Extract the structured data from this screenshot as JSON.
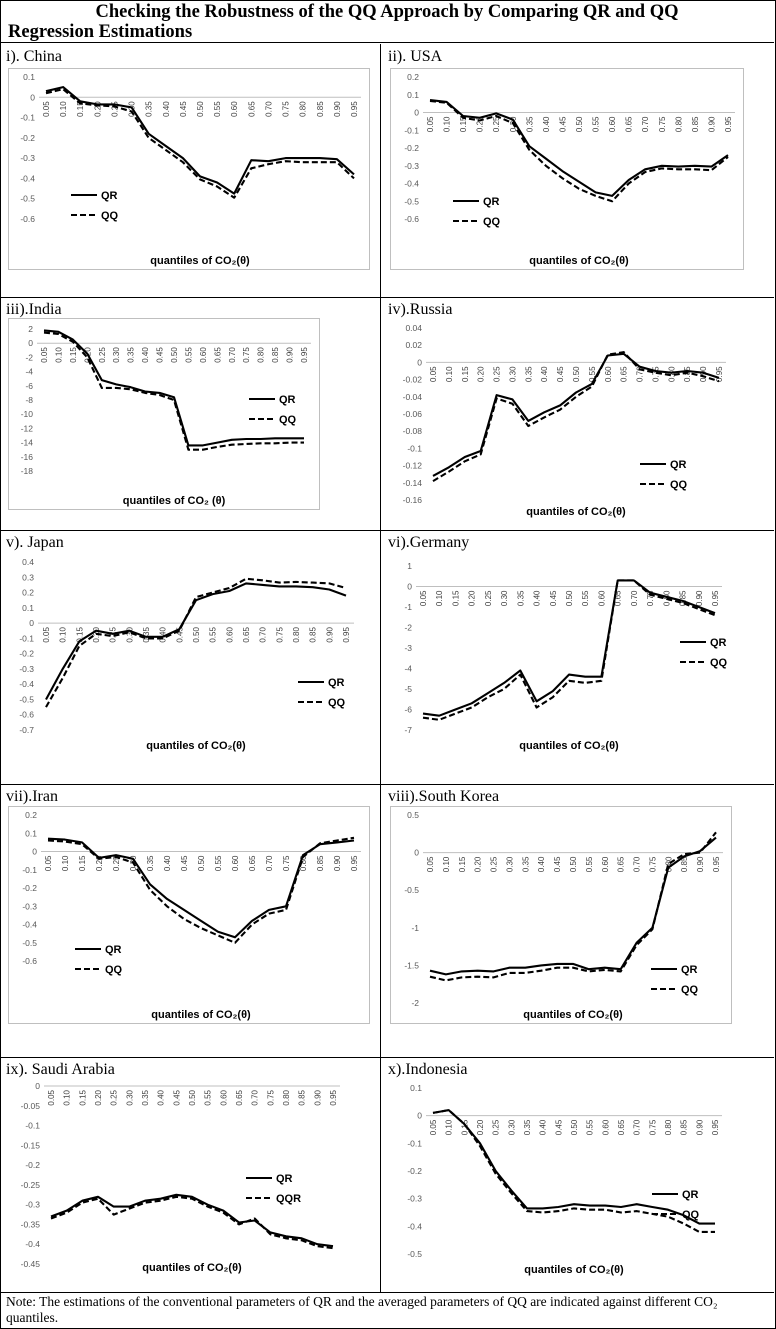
{
  "title": {
    "line1": "Checking the Robustness of the QQ Approach by Comparing QR and QQ",
    "line2": "Regression Estimations"
  },
  "note": "Note: The estimations of the conventional parameters of QR and the averaged parameters of QQ are indicated against different CO₂ quantiles.",
  "chart_data": [
    {
      "type": "line",
      "label": "i). China",
      "xlabel": "quantiles of CO₂(θ)",
      "categories": [
        "0.05",
        "0.10",
        "0.15",
        "0.20",
        "0.25",
        "0.30",
        "0.35",
        "0.40",
        "0.45",
        "0.50",
        "0.55",
        "0.60",
        "0.65",
        "0.70",
        "0.75",
        "0.80",
        "0.85",
        "0.90",
        "0.95"
      ],
      "ylim": [
        -0.6,
        0.1
      ],
      "yticks": [
        "0.1",
        "0",
        "-0.1",
        "-0.2",
        "-0.3",
        "-0.4",
        "-0.5",
        "-0.6"
      ],
      "legend": [
        "QR",
        "QQ"
      ],
      "series": [
        {
          "name": "QR",
          "values": [
            0.03,
            0.05,
            -0.02,
            -0.035,
            -0.035,
            -0.05,
            -0.18,
            -0.24,
            -0.3,
            -0.39,
            -0.42,
            -0.475,
            -0.31,
            -0.315,
            -0.3,
            -0.3,
            -0.3,
            -0.305,
            -0.38
          ]
        },
        {
          "name": "QQ",
          "values": [
            0.02,
            0.04,
            -0.03,
            -0.04,
            -0.045,
            -0.07,
            -0.2,
            -0.26,
            -0.32,
            -0.405,
            -0.44,
            -0.495,
            -0.35,
            -0.33,
            -0.315,
            -0.32,
            -0.32,
            -0.32,
            -0.4
          ]
        }
      ]
    },
    {
      "type": "line",
      "label": "ii). USA",
      "xlabel": "quantiles of CO₂(θ)",
      "categories": [
        "0.05",
        "0.10",
        "0.15",
        "0.20",
        "0.25",
        "0.30",
        "0.35",
        "0.40",
        "0.45",
        "0.50",
        "0.55",
        "0.60",
        "0.65",
        "0.70",
        "0.75",
        "0.80",
        "0.85",
        "0.90",
        "0.95"
      ],
      "ylim": [
        -0.6,
        0.2
      ],
      "yticks": [
        "0.2",
        "0.1",
        "0",
        "-0.1",
        "-0.2",
        "-0.3",
        "-0.4",
        "-0.5",
        "-0.6"
      ],
      "legend": [
        "QR",
        "QQ"
      ],
      "series": [
        {
          "name": "QR",
          "values": [
            0.07,
            0.06,
            -0.02,
            -0.03,
            -0.005,
            -0.04,
            -0.19,
            -0.26,
            -0.33,
            -0.39,
            -0.45,
            -0.47,
            -0.38,
            -0.32,
            -0.3,
            -0.305,
            -0.3,
            -0.305,
            -0.24
          ]
        },
        {
          "name": "QQ",
          "values": [
            0.065,
            0.055,
            -0.03,
            -0.045,
            -0.02,
            -0.06,
            -0.21,
            -0.3,
            -0.37,
            -0.43,
            -0.47,
            -0.5,
            -0.4,
            -0.335,
            -0.315,
            -0.32,
            -0.32,
            -0.325,
            -0.25
          ]
        }
      ]
    },
    {
      "type": "line",
      "label": "iii).India",
      "xlabel": "quantiles of CO₂ (θ)",
      "categories": [
        "0.05",
        "0.10",
        "0.15",
        "0.20",
        "0.25",
        "0.30",
        "0.35",
        "0.40",
        "0.45",
        "0.50",
        "0.55",
        "0.60",
        "0.65",
        "0.70",
        "0.75",
        "0.80",
        "0.85",
        "0.90",
        "0.95"
      ],
      "ylim": [
        -18,
        2
      ],
      "yticks": [
        "2",
        "0",
        "-2",
        "-4",
        "-6",
        "-8",
        "-10",
        "-12",
        "-14",
        "-16",
        "-18"
      ],
      "legend": [
        "QR",
        "QQ"
      ],
      "series": [
        {
          "name": "QR",
          "values": [
            1.8,
            1.6,
            0.5,
            -1.5,
            -5.2,
            -5.8,
            -6.2,
            -6.8,
            -7.0,
            -7.6,
            -14.4,
            -14.4,
            -14.0,
            -13.6,
            -13.5,
            -13.5,
            -13.4,
            -13.4,
            -13.4
          ]
        },
        {
          "name": "QQ",
          "values": [
            1.5,
            1.3,
            0.2,
            -2.0,
            -6.3,
            -6.3,
            -6.5,
            -7.0,
            -7.3,
            -8.0,
            -15.0,
            -15.0,
            -14.6,
            -14.3,
            -14.2,
            -14.1,
            -14.1,
            -14.0,
            -14.0
          ]
        }
      ]
    },
    {
      "type": "line",
      "label": "iv).Russia",
      "xlabel": "quantiles of CO₂(θ)",
      "categories": [
        "0.05",
        "0.10",
        "0.15",
        "0.20",
        "0.25",
        "0.30",
        "0.35",
        "0.40",
        "0.45",
        "0.50",
        "0.55",
        "0.60",
        "0.65",
        "0.70",
        "0.75",
        "0.80",
        "0.85",
        "0.90",
        "0.95"
      ],
      "ylim": [
        -0.16,
        0.04
      ],
      "yticks": [
        "0.04",
        "0.02",
        "0",
        "-0.02",
        "-0.04",
        "-0.06",
        "-0.08",
        "-0.1",
        "-0.12",
        "-0.14",
        "-0.16"
      ],
      "legend": [
        "QR",
        "QQ"
      ],
      "series": [
        {
          "name": "QR",
          "values": [
            -0.132,
            -0.122,
            -0.11,
            -0.103,
            -0.038,
            -0.043,
            -0.068,
            -0.058,
            -0.05,
            -0.035,
            -0.025,
            0.008,
            0.01,
            -0.005,
            -0.01,
            -0.012,
            -0.01,
            -0.012,
            -0.018
          ]
        },
        {
          "name": "QQ",
          "values": [
            -0.138,
            -0.127,
            -0.115,
            -0.107,
            -0.042,
            -0.048,
            -0.074,
            -0.064,
            -0.055,
            -0.04,
            -0.028,
            0.009,
            0.012,
            -0.008,
            -0.012,
            -0.015,
            -0.012,
            -0.016,
            -0.022
          ]
        }
      ]
    },
    {
      "type": "line",
      "label": "v). Japan",
      "xlabel": "quantiles of CO₂(θ)",
      "categories": [
        "0.05",
        "0.10",
        "0.15",
        "0.20",
        "0.25",
        "0.30",
        "0.35",
        "0.40",
        "0.45",
        "0.50",
        "0.55",
        "0.60",
        "0.65",
        "0.70",
        "0.75",
        "0.80",
        "0.85",
        "0.90",
        "0.95"
      ],
      "ylim": [
        -0.7,
        0.4
      ],
      "yticks": [
        "0.4",
        "0.3",
        "0.2",
        "0.1",
        "0",
        "-0.1",
        "-0.2",
        "-0.3",
        "-0.4",
        "-0.5",
        "-0.6",
        "-0.7"
      ],
      "legend": [
        "QR",
        "QQ"
      ],
      "series": [
        {
          "name": "QR",
          "values": [
            -0.5,
            -0.3,
            -0.12,
            -0.05,
            -0.07,
            -0.05,
            -0.09,
            -0.09,
            -0.04,
            0.15,
            0.19,
            0.21,
            0.26,
            0.25,
            0.24,
            0.24,
            0.235,
            0.22,
            0.18
          ]
        },
        {
          "name": "QQ",
          "values": [
            -0.55,
            -0.36,
            -0.15,
            -0.07,
            -0.085,
            -0.06,
            -0.1,
            -0.1,
            -0.05,
            0.17,
            0.2,
            0.23,
            0.29,
            0.28,
            0.265,
            0.27,
            0.265,
            0.26,
            0.23
          ]
        }
      ]
    },
    {
      "type": "line",
      "label": "vi).Germany",
      "xlabel": "quantiles of CO₂(θ)",
      "categories": [
        "0.05",
        "0.10",
        "0.15",
        "0.20",
        "0.25",
        "0.30",
        "0.35",
        "0.40",
        "0.45",
        "0.50",
        "0.55",
        "0.60",
        "0.65",
        "0.70",
        "0.75",
        "0.80",
        "0.85",
        "0.90",
        "0.95"
      ],
      "ylim": [
        -7,
        1
      ],
      "yticks": [
        "1",
        "0",
        "-1",
        "-2",
        "-3",
        "-4",
        "-5",
        "-6",
        "-7"
      ],
      "legend": [
        "QR",
        "QQ"
      ],
      "series": [
        {
          "name": "QR",
          "values": [
            -6.2,
            -6.3,
            -6.0,
            -5.7,
            -5.2,
            -4.7,
            -4.1,
            -5.6,
            -5.1,
            -4.3,
            -4.4,
            -4.4,
            0.3,
            0.3,
            -0.3,
            -0.5,
            -0.7,
            -1.0,
            -1.3
          ]
        },
        {
          "name": "QQ",
          "values": [
            -6.4,
            -6.5,
            -6.2,
            -5.9,
            -5.4,
            -5.0,
            -4.3,
            -5.9,
            -5.4,
            -4.6,
            -4.7,
            -4.6,
            0.3,
            0.3,
            -0.4,
            -0.6,
            -0.8,
            -1.1,
            -1.4
          ]
        }
      ]
    },
    {
      "type": "line",
      "label": "vii).Iran",
      "xlabel": "quantiles of CO₂(θ)",
      "categories": [
        "0.05",
        "0.10",
        "0.15",
        "0.20",
        "0.25",
        "0.30",
        "0.35",
        "0.40",
        "0.45",
        "0.50",
        "0.55",
        "0.60",
        "0.65",
        "0.70",
        "0.75",
        "0.80",
        "0.85",
        "0.90",
        "0.95"
      ],
      "ylim": [
        -0.6,
        0.2
      ],
      "yticks": [
        "0.2",
        "0.1",
        "0",
        "-0.1",
        "-0.2",
        "-0.3",
        "-0.4",
        "-0.5",
        "-0.6"
      ],
      "legend": [
        "QR",
        "QQ"
      ],
      "series": [
        {
          "name": "QR",
          "values": [
            0.07,
            0.065,
            0.05,
            -0.035,
            -0.02,
            -0.04,
            -0.18,
            -0.26,
            -0.32,
            -0.38,
            -0.44,
            -0.47,
            -0.38,
            -0.32,
            -0.3,
            -0.02,
            0.04,
            0.05,
            0.06
          ]
        },
        {
          "name": "QQ",
          "values": [
            0.06,
            0.055,
            0.04,
            -0.04,
            -0.03,
            -0.06,
            -0.21,
            -0.3,
            -0.37,
            -0.42,
            -0.46,
            -0.5,
            -0.4,
            -0.34,
            -0.32,
            -0.03,
            0.045,
            0.06,
            0.075
          ]
        }
      ]
    },
    {
      "type": "line",
      "label": "viii).South Korea",
      "xlabel": "quantiles of CO₂(θ)",
      "categories": [
        "0.05",
        "0.10",
        "0.15",
        "0.20",
        "0.25",
        "0.30",
        "0.35",
        "0.40",
        "0.45",
        "0.50",
        "0.55",
        "0.60",
        "0.65",
        "0.70",
        "0.75",
        "0.80",
        "0.85",
        "0.90",
        "0.95"
      ],
      "ylim": [
        -2,
        0.5
      ],
      "yticks": [
        "0.5",
        "0",
        "-0.5",
        "-1",
        "-1.5",
        "-2"
      ],
      "legend": [
        "QR",
        "QQ"
      ],
      "series": [
        {
          "name": "QR",
          "values": [
            -1.57,
            -1.62,
            -1.58,
            -1.57,
            -1.58,
            -1.53,
            -1.53,
            -1.5,
            -1.48,
            -1.48,
            -1.55,
            -1.53,
            -1.55,
            -1.2,
            -1.0,
            -0.2,
            -0.05,
            0.02,
            0.2
          ]
        },
        {
          "name": "QQ",
          "values": [
            -1.65,
            -1.7,
            -1.66,
            -1.65,
            -1.66,
            -1.6,
            -1.6,
            -1.57,
            -1.53,
            -1.53,
            -1.58,
            -1.56,
            -1.58,
            -1.23,
            -1.02,
            -0.15,
            -0.02,
            0.0,
            0.27
          ]
        }
      ]
    },
    {
      "type": "line",
      "label": "ix). Saudi Arabia",
      "xlabel": "quantiles of CO₂(θ)",
      "categories": [
        "0.05",
        "0.10",
        "0.15",
        "0.20",
        "0.25",
        "0.30",
        "0.35",
        "0.40",
        "0.45",
        "0.50",
        "0.55",
        "0.60",
        "0.65",
        "0.70",
        "0.75",
        "0.80",
        "0.85",
        "0.90",
        "0.95"
      ],
      "ylim": [
        -0.45,
        0
      ],
      "yticks": [
        "0",
        "-0.05",
        "-0.1",
        "-0.15",
        "-0.2",
        "-0.25",
        "-0.3",
        "-0.35",
        "-0.4",
        "-0.45"
      ],
      "legend": [
        "QR",
        "QQR"
      ],
      "series": [
        {
          "name": "QR",
          "values": [
            -0.33,
            -0.315,
            -0.29,
            -0.28,
            -0.305,
            -0.305,
            -0.29,
            -0.285,
            -0.275,
            -0.28,
            -0.3,
            -0.315,
            -0.345,
            -0.34,
            -0.37,
            -0.38,
            -0.385,
            -0.4,
            -0.405
          ]
        },
        {
          "name": "QQR",
          "values": [
            -0.335,
            -0.32,
            -0.295,
            -0.285,
            -0.325,
            -0.31,
            -0.295,
            -0.29,
            -0.28,
            -0.285,
            -0.305,
            -0.32,
            -0.35,
            -0.335,
            -0.375,
            -0.385,
            -0.39,
            -0.405,
            -0.41
          ]
        }
      ]
    },
    {
      "type": "line",
      "label": "x).Indonesia",
      "xlabel": "quantiles of CO₂(θ)",
      "categories": [
        "0.05",
        "0.10",
        "0.15",
        "0.20",
        "0.25",
        "0.30",
        "0.35",
        "0.40",
        "0.45",
        "0.50",
        "0.55",
        "0.60",
        "0.65",
        "0.70",
        "0.75",
        "0.80",
        "0.85",
        "0.90",
        "0.95"
      ],
      "ylim": [
        -0.5,
        0.1
      ],
      "yticks": [
        "0.1",
        "0",
        "-0.1",
        "-0.2",
        "-0.3",
        "-0.4",
        "-0.5"
      ],
      "legend": [
        "QR",
        "QQ"
      ],
      "series": [
        {
          "name": "QR",
          "values": [
            0.01,
            0.02,
            -0.03,
            -0.1,
            -0.2,
            -0.27,
            -0.335,
            -0.335,
            -0.33,
            -0.32,
            -0.325,
            -0.325,
            -0.33,
            -0.32,
            -0.33,
            -0.34,
            -0.36,
            -0.39,
            -0.39
          ]
        },
        {
          "name": "QQ",
          "values": [
            0.01,
            0.02,
            -0.03,
            -0.11,
            -0.21,
            -0.28,
            -0.345,
            -0.35,
            -0.345,
            -0.335,
            -0.34,
            -0.34,
            -0.35,
            -0.345,
            -0.355,
            -0.365,
            -0.39,
            -0.42,
            -0.42
          ]
        }
      ]
    }
  ]
}
